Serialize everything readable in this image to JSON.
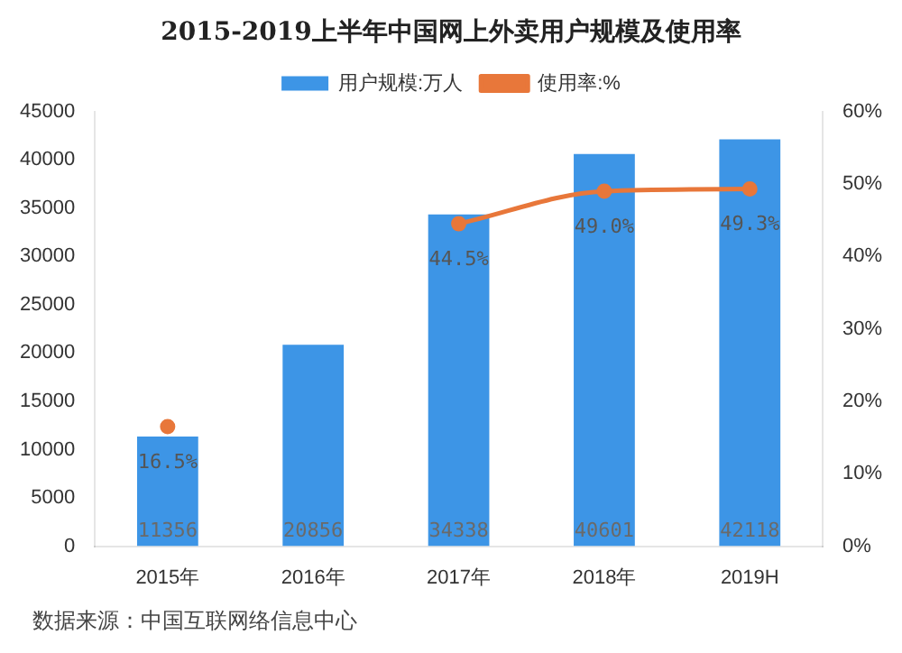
{
  "chart_data": {
    "type": "bar",
    "title": "2015-2019上半年中国网上外卖用户规模及使用率",
    "categories": [
      "2015年",
      "2016年",
      "2017年",
      "2018年",
      "2019H"
    ],
    "series": [
      {
        "name": "用户规模:万人",
        "color": "#3d95e6",
        "values": [
          11356,
          20856,
          34338,
          40601,
          42118
        ],
        "value_labels": [
          "11356",
          "20856",
          "34338",
          "40601",
          "42118"
        ]
      },
      {
        "name": "使用率:%",
        "type": "line",
        "axis": "y2",
        "color": "#e8773a",
        "marker": "circle",
        "values": [
          16.5,
          null,
          44.5,
          49.0,
          49.3
        ],
        "value_labels": [
          "16.5%",
          null,
          "44.5%",
          "49.0%",
          "49.3%"
        ]
      }
    ],
    "ylim": [
      0,
      45000
    ],
    "yticks": [
      0,
      5000,
      10000,
      15000,
      20000,
      25000,
      30000,
      35000,
      40000,
      45000
    ],
    "y2lim": [
      0,
      60
    ],
    "y2ticks": [
      {
        "value": 0,
        "label": "0%"
      },
      {
        "value": 10,
        "label": "10%"
      },
      {
        "value": 20,
        "label": "20%"
      },
      {
        "value": 30,
        "label": "30%"
      },
      {
        "value": 40,
        "label": "40%"
      },
      {
        "value": 50,
        "label": "50%"
      },
      {
        "value": 60,
        "label": "60%"
      }
    ],
    "legend": "top",
    "grid": false,
    "annotations": [
      "数据来源：中国互联网络信息中心"
    ]
  }
}
